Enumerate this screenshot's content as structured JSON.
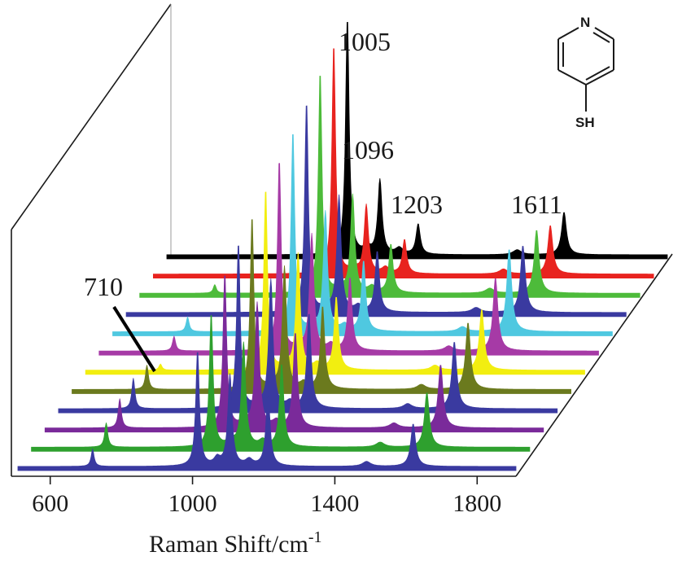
{
  "chart_data": {
    "type": "line",
    "style": "3d-waterfall",
    "xlabel": "Raman Shift/cm",
    "xlabel_superscript": "-1",
    "xlim": [
      500,
      1900
    ],
    "xticks": [
      600,
      1000,
      1400,
      1800
    ],
    "peak_annotations": [
      "710",
      "1005",
      "1096",
      "1203",
      "1611"
    ],
    "molecule": {
      "name": "4-mercaptopyridine",
      "labels": [
        "N",
        "SH"
      ]
    },
    "series_colors_front_to_back": [
      "#3a3aa0",
      "#2ea02e",
      "#7a2a9a",
      "#3a3aa0",
      "#6b7a1e",
      "#f2ee10",
      "#a63aa6",
      "#4fc8e0",
      "#3a3aa0",
      "#4dbb3a",
      "#e8231f",
      "#000000"
    ],
    "series": [
      {
        "peaks": [
          [
            710,
            0.14
          ],
          [
            1005,
            0.95
          ],
          [
            1096,
            0.75
          ],
          [
            1203,
            0.6
          ],
          [
            1611,
            0.35
          ]
        ]
      },
      {
        "peaks": [
          [
            710,
            0.2
          ],
          [
            1005,
            1.1
          ],
          [
            1096,
            0.85
          ],
          [
            1203,
            0.68
          ],
          [
            1611,
            0.45
          ]
        ]
      },
      {
        "peaks": [
          [
            710,
            0.24
          ],
          [
            1005,
            1.27
          ],
          [
            1096,
            1.02
          ],
          [
            1203,
            0.78
          ],
          [
            1611,
            0.52
          ]
        ]
      },
      {
        "peaks": [
          [
            710,
            0.25
          ],
          [
            1005,
            1.36
          ],
          [
            1096,
            1.05
          ],
          [
            1203,
            0.78
          ],
          [
            1611,
            0.55
          ]
        ]
      },
      {
        "peaks": [
          [
            710,
            0.2
          ],
          [
            1005,
            1.42
          ],
          [
            1096,
            1.0
          ],
          [
            1203,
            0.68
          ],
          [
            1611,
            0.55
          ]
        ]
      },
      {
        "peaks": [
          [
            710,
            0.05
          ],
          [
            1005,
            1.49
          ],
          [
            1096,
            0.95
          ],
          [
            1203,
            0.6
          ],
          [
            1611,
            0.5
          ]
        ]
      },
      {
        "peaks": [
          [
            710,
            0.12
          ],
          [
            1005,
            1.57
          ],
          [
            1096,
            0.95
          ],
          [
            1203,
            0.6
          ],
          [
            1611,
            0.6
          ]
        ]
      },
      {
        "peaks": [
          [
            710,
            0.12
          ],
          [
            1005,
            1.65
          ],
          [
            1096,
            0.98
          ],
          [
            1203,
            0.58
          ],
          [
            1611,
            0.68
          ]
        ]
      },
      {
        "peaks": [
          [
            710,
            0.0
          ],
          [
            1005,
            1.73
          ],
          [
            1096,
            0.95
          ],
          [
            1203,
            0.5
          ],
          [
            1611,
            0.55
          ]
        ]
      },
      {
        "peaks": [
          [
            710,
            0.07
          ],
          [
            1005,
            1.82
          ],
          [
            1096,
            0.8
          ],
          [
            1203,
            0.4
          ],
          [
            1611,
            0.52
          ]
        ]
      },
      {
        "peaks": [
          [
            710,
            0.0
          ],
          [
            1005,
            1.89
          ],
          [
            1096,
            0.56
          ],
          [
            1203,
            0.28
          ],
          [
            1611,
            0.4
          ]
        ]
      },
      {
        "peaks": [
          [
            710,
            0.0
          ],
          [
            1005,
            1.95
          ],
          [
            1096,
            0.61
          ],
          [
            1203,
            0.25
          ],
          [
            1611,
            0.35
          ]
        ]
      }
    ]
  }
}
